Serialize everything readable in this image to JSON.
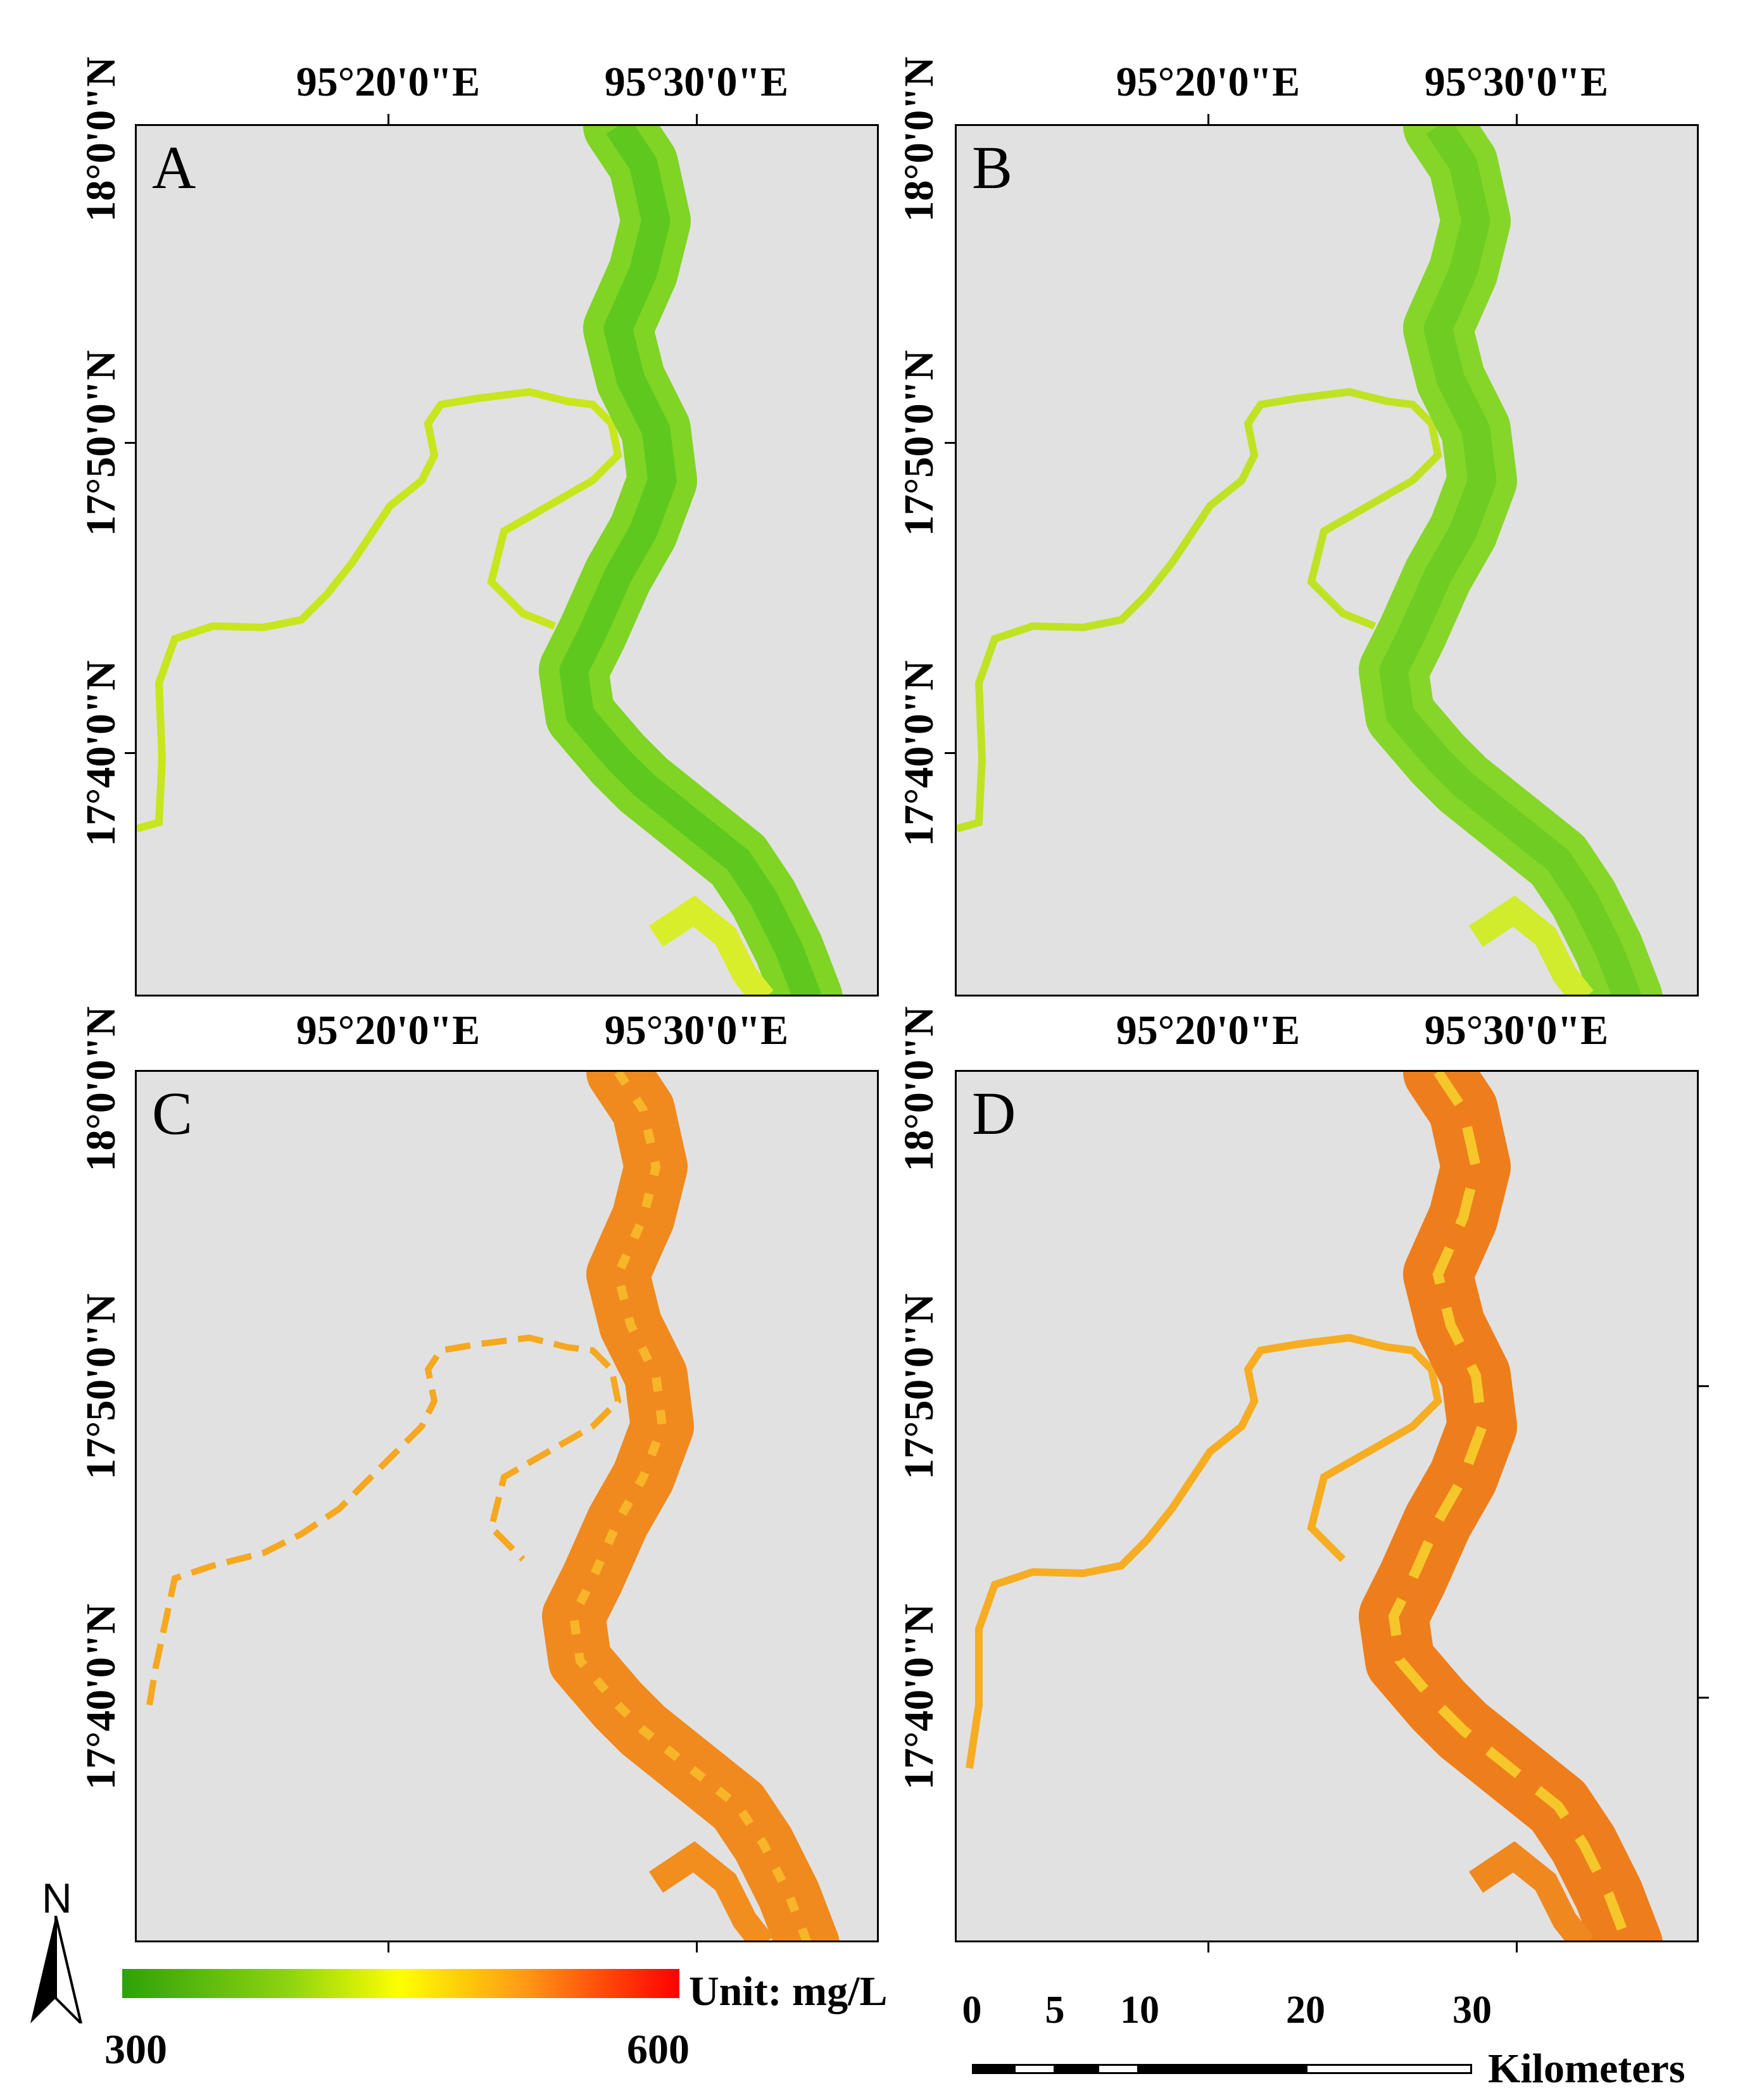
{
  "panels": [
    {
      "letter": "A",
      "palette": "green"
    },
    {
      "letter": "B",
      "palette": "green"
    },
    {
      "letter": "C",
      "palette": "orange"
    },
    {
      "letter": "D",
      "palette": "orange"
    }
  ],
  "longitude_labels": [
    "95°20'0\"E",
    "95°30'0\"E"
  ],
  "latitude_labels": [
    "18°0'0\"N",
    "17°50'0\"N",
    "17°40'0\"N"
  ],
  "legend": {
    "unit": "Unit: mg/L",
    "min": "300",
    "max": "600",
    "colors": [
      "#2ea10a",
      "#8ed411",
      "#ffff00",
      "#ff9a16",
      "#ff0000"
    ]
  },
  "north_arrow": {
    "label": "N"
  },
  "scale_bar": {
    "ticks": [
      "0",
      "5",
      "10",
      "20",
      "30"
    ],
    "unit": "Kilometers"
  },
  "colors": {
    "background": "#e1e1e1",
    "green_river": "#7fd424",
    "green_edge": "#c8e61e",
    "orange_river": "#f18a1e",
    "orange_edge": "#f5c521"
  }
}
